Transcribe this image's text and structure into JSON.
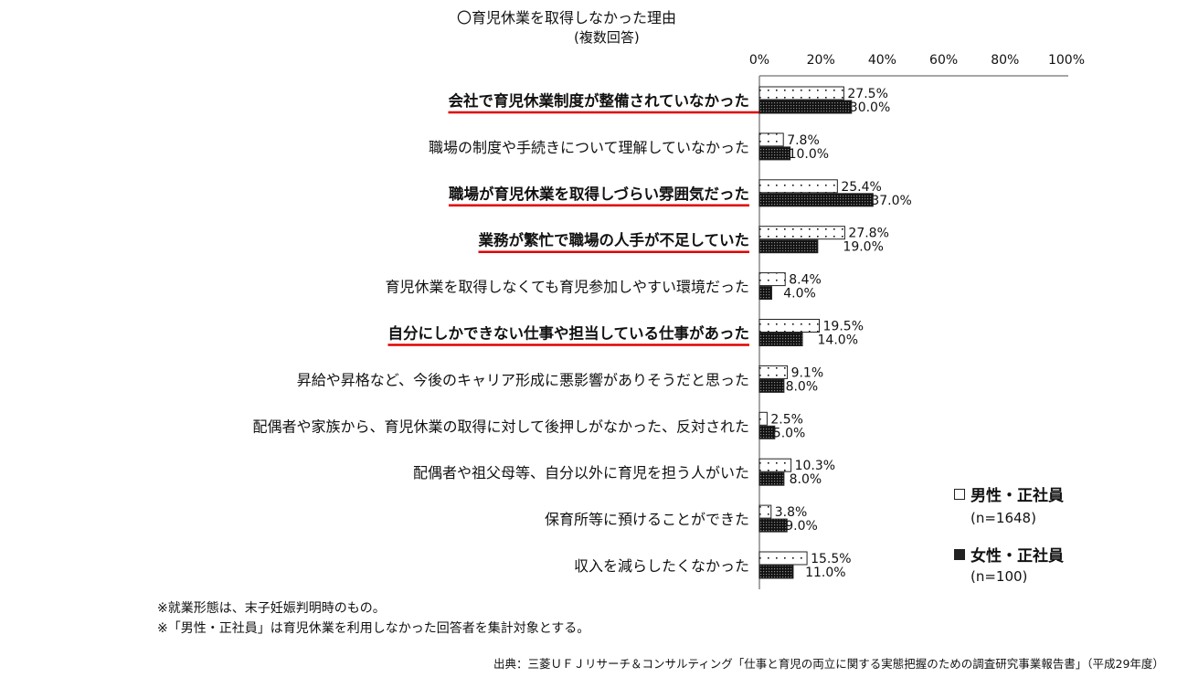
{
  "title": "〇育児休業を取得しなかった理由",
  "subtitle": "(複数回答)",
  "notes": [
    "※就業形態は、末子妊娠判明時のもの。",
    "※「男性・正社員」は育児休業を利用しなかった回答者を集計対象とする。"
  ],
  "source": "出典：三菱ＵＦＪリサーチ＆コンサルティング「仕事と育児の両立に関する実態把握のための調査研究事業報告書」（平成29年度）",
  "legend": [
    {
      "label": "男性・正社員",
      "n": "(n=1648)"
    },
    {
      "label": "女性・正社員",
      "n": "(n=100)"
    }
  ],
  "chart_data": {
    "type": "bar",
    "orientation": "horizontal",
    "xlim": [
      0,
      100
    ],
    "xticks": [
      "0%",
      "20%",
      "40%",
      "60%",
      "80%",
      "100%"
    ],
    "categories": [
      "会社で育児休業制度が整備されていなかった",
      "職場の制度や手続きについて理解していなかった",
      "職場が育児休業を取得しづらい雰囲気だった",
      "業務が繁忙で職場の人手が不足していた",
      "育児休業を取得しなくても育児参加しやすい環境だった",
      "自分にしかできない仕事や担当している仕事があった",
      "昇給や昇格など、今後のキャリア形成に悪影響がありそうだと思った",
      "配偶者や家族から、育児休業の取得に対して後押しがなかった、反対された",
      "配偶者や祖父母等、自分以外に育児を担う人がいた",
      "保育所等に預けることができた",
      "収入を減らしたくなかった"
    ],
    "highlighted": [
      true,
      false,
      true,
      true,
      false,
      true,
      false,
      false,
      false,
      false,
      false
    ],
    "highlight_color": "#e00000",
    "series": [
      {
        "name": "男性・正社員",
        "pattern": "dots",
        "values": [
          27.5,
          7.8,
          25.4,
          27.8,
          8.4,
          19.5,
          9.1,
          2.5,
          10.3,
          3.8,
          15.5
        ]
      },
      {
        "name": "女性・正社員",
        "pattern": "grid",
        "values": [
          30.0,
          10.0,
          37.0,
          19.0,
          4.0,
          14.0,
          8.0,
          5.0,
          8.0,
          9.0,
          11.0
        ]
      }
    ],
    "grid": false,
    "legend_position": "bottom-right"
  }
}
